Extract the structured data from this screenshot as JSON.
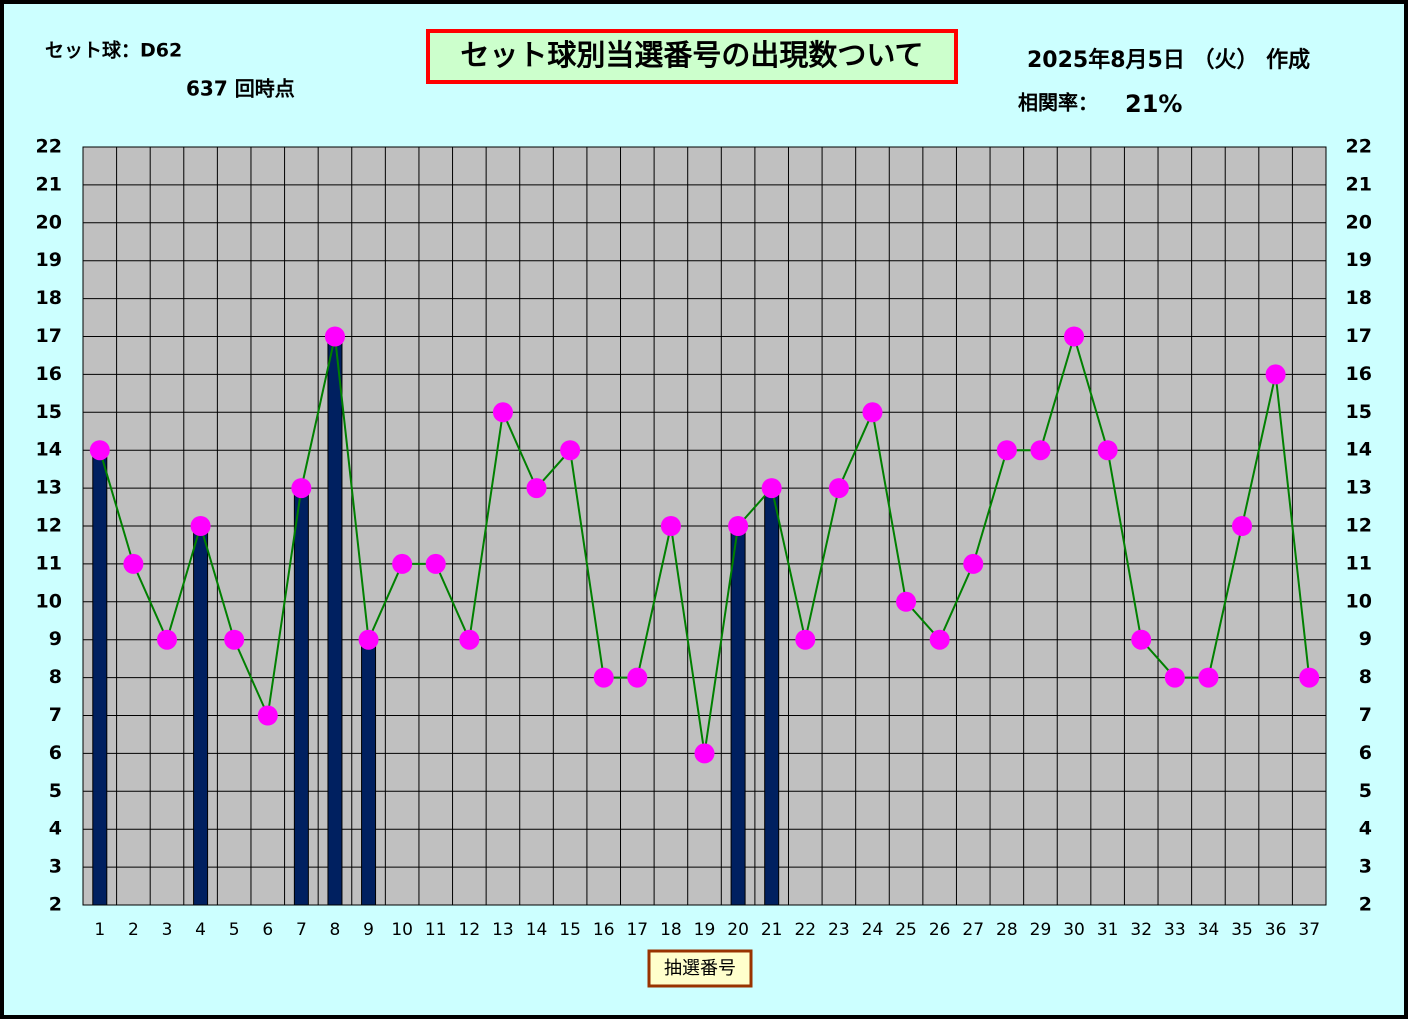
{
  "chart_data": {
    "type": "bar-line",
    "title": "セット球別当選番号の出現数ついて",
    "set_ball": "セット球：D62",
    "draw_point": "637 回時点",
    "date": "2025年8月5日 （火） 作成",
    "correlation_label": "相関率：",
    "correlation": "21%",
    "x_label": "抽選番号",
    "categories": [
      "1",
      "2",
      "3",
      "4",
      "5",
      "6",
      "7",
      "8",
      "9",
      "10",
      "11",
      "12",
      "13",
      "14",
      "15",
      "16",
      "17",
      "18",
      "19",
      "20",
      "21",
      "22",
      "23",
      "24",
      "25",
      "26",
      "27",
      "28",
      "29",
      "30",
      "31",
      "32",
      "33",
      "34",
      "35",
      "36",
      "37"
    ],
    "series": [
      {
        "type": "line",
        "color": "#008000",
        "marker_color": "#ff00ff",
        "values": [
          14,
          11,
          9,
          12,
          9,
          7,
          13,
          17,
          9,
          11,
          11,
          9,
          15,
          13,
          14,
          8,
          8,
          12,
          6,
          12,
          13,
          9,
          13,
          15,
          10,
          9,
          11,
          14,
          14,
          17,
          14,
          9,
          8,
          8,
          12,
          16,
          8
        ]
      },
      {
        "type": "bar",
        "color": "#002060",
        "values": [
          14,
          null,
          null,
          12,
          null,
          null,
          13,
          17,
          9,
          null,
          null,
          null,
          null,
          null,
          null,
          null,
          null,
          null,
          null,
          12,
          13,
          null,
          null,
          null,
          null,
          null,
          null,
          null,
          null,
          null,
          null,
          null,
          null,
          null,
          null,
          null,
          null
        ]
      }
    ],
    "ylim": [
      2,
      22
    ],
    "yticks": [
      2,
      3,
      4,
      5,
      6,
      7,
      8,
      9,
      10,
      11,
      12,
      13,
      14,
      15,
      16,
      17,
      18,
      19,
      20,
      21,
      22
    ],
    "y2lim": [
      2,
      22
    ],
    "y2ticks": [
      2,
      3,
      4,
      5,
      6,
      7,
      8,
      9,
      10,
      11,
      12,
      13,
      14,
      15,
      16,
      17,
      18,
      19,
      20,
      21,
      22
    ],
    "grid": true
  }
}
